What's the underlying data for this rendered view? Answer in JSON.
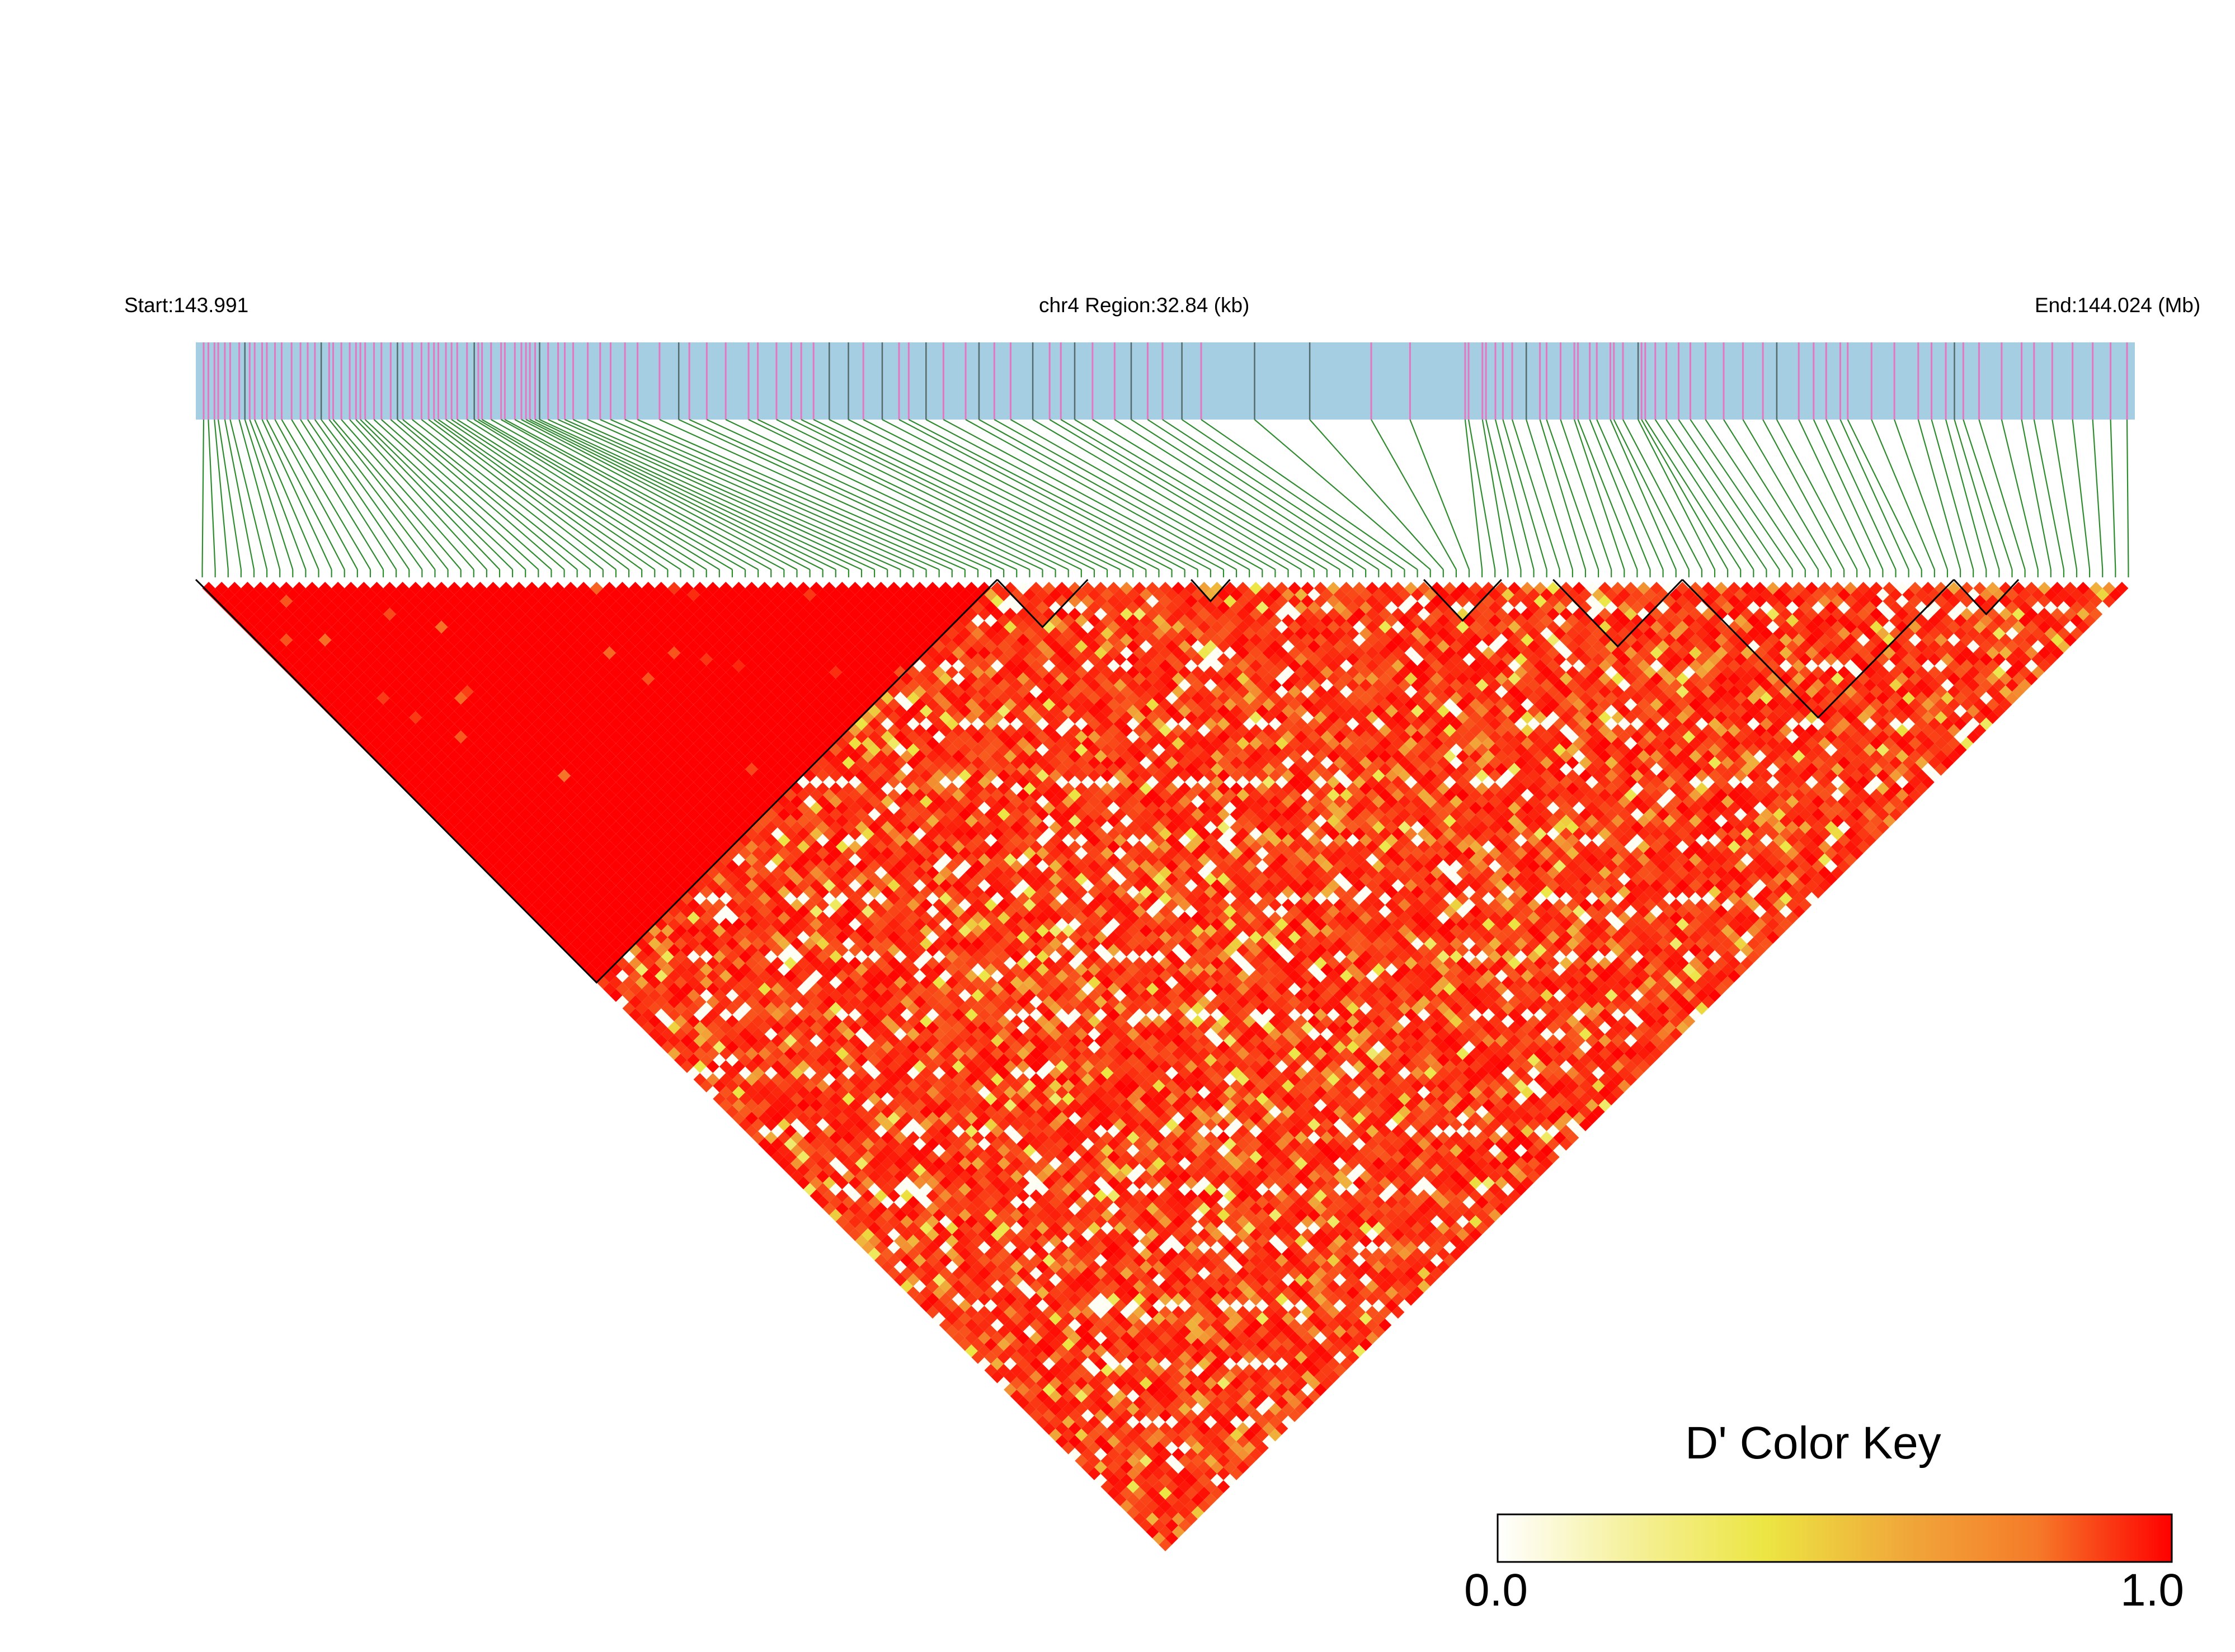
{
  "plot": {
    "type": "ld-heatmap",
    "chromosome": "chr4",
    "region_label": "chr4 Region:32.84 (kb)",
    "start_label": "Start:143.991",
    "end_label": "End:144.024 (Mb)",
    "start_mb": 143.991,
    "end_mb": 144.024,
    "region_kb": 32.84,
    "snp_count": 150,
    "colors": {
      "track": "#a6cee3",
      "snp_tick_pink": "#e377c2",
      "snp_tick_dark": "#556b6b",
      "connector": "#2e8b2e",
      "high_ld": "#ff0000",
      "block_outline": "#000000"
    }
  },
  "color_key": {
    "title": "D' Color Key",
    "min_label": "0.0",
    "max_label": "1.0",
    "min": 0.0,
    "max": 1.0,
    "stops": [
      "#ffffff",
      "#f5f099",
      "#ece542",
      "#f0a93a",
      "#f57a29",
      "#ff0000"
    ]
  }
}
